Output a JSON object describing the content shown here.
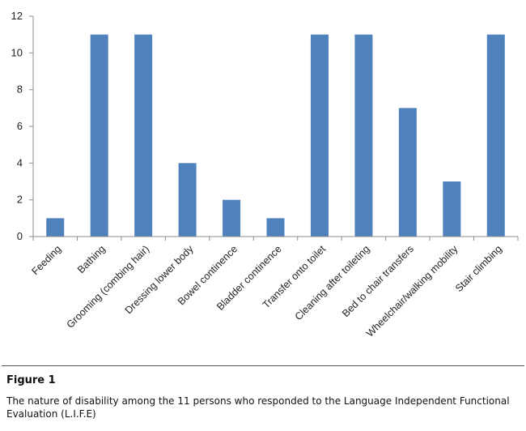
{
  "chart_data": {
    "type": "bar",
    "categories": [
      "Feeding",
      "Bathing",
      "Grooming (combing hair)",
      "Dressing lower body",
      "Bowel continence",
      "Bladder continence",
      "Transfer onto toilet",
      "Cleaning after toileting",
      "Bed to chair transfers",
      "Wheelchair/walking mobility",
      "Stair climbing"
    ],
    "values": [
      1,
      11,
      11,
      4,
      2,
      1,
      11,
      11,
      7,
      3,
      11
    ],
    "ylim": [
      0,
      12
    ],
    "yticks": [
      0,
      2,
      4,
      6,
      8,
      10,
      12
    ],
    "grid": false,
    "bar_color": "#4f81bd",
    "axis_color": "#8c8c8c"
  },
  "figure": {
    "label": "Figure 1",
    "caption": "The nature of disability among the 11 persons who responded to the Language Independent Functional Evaluation (L.I.F.E)"
  }
}
